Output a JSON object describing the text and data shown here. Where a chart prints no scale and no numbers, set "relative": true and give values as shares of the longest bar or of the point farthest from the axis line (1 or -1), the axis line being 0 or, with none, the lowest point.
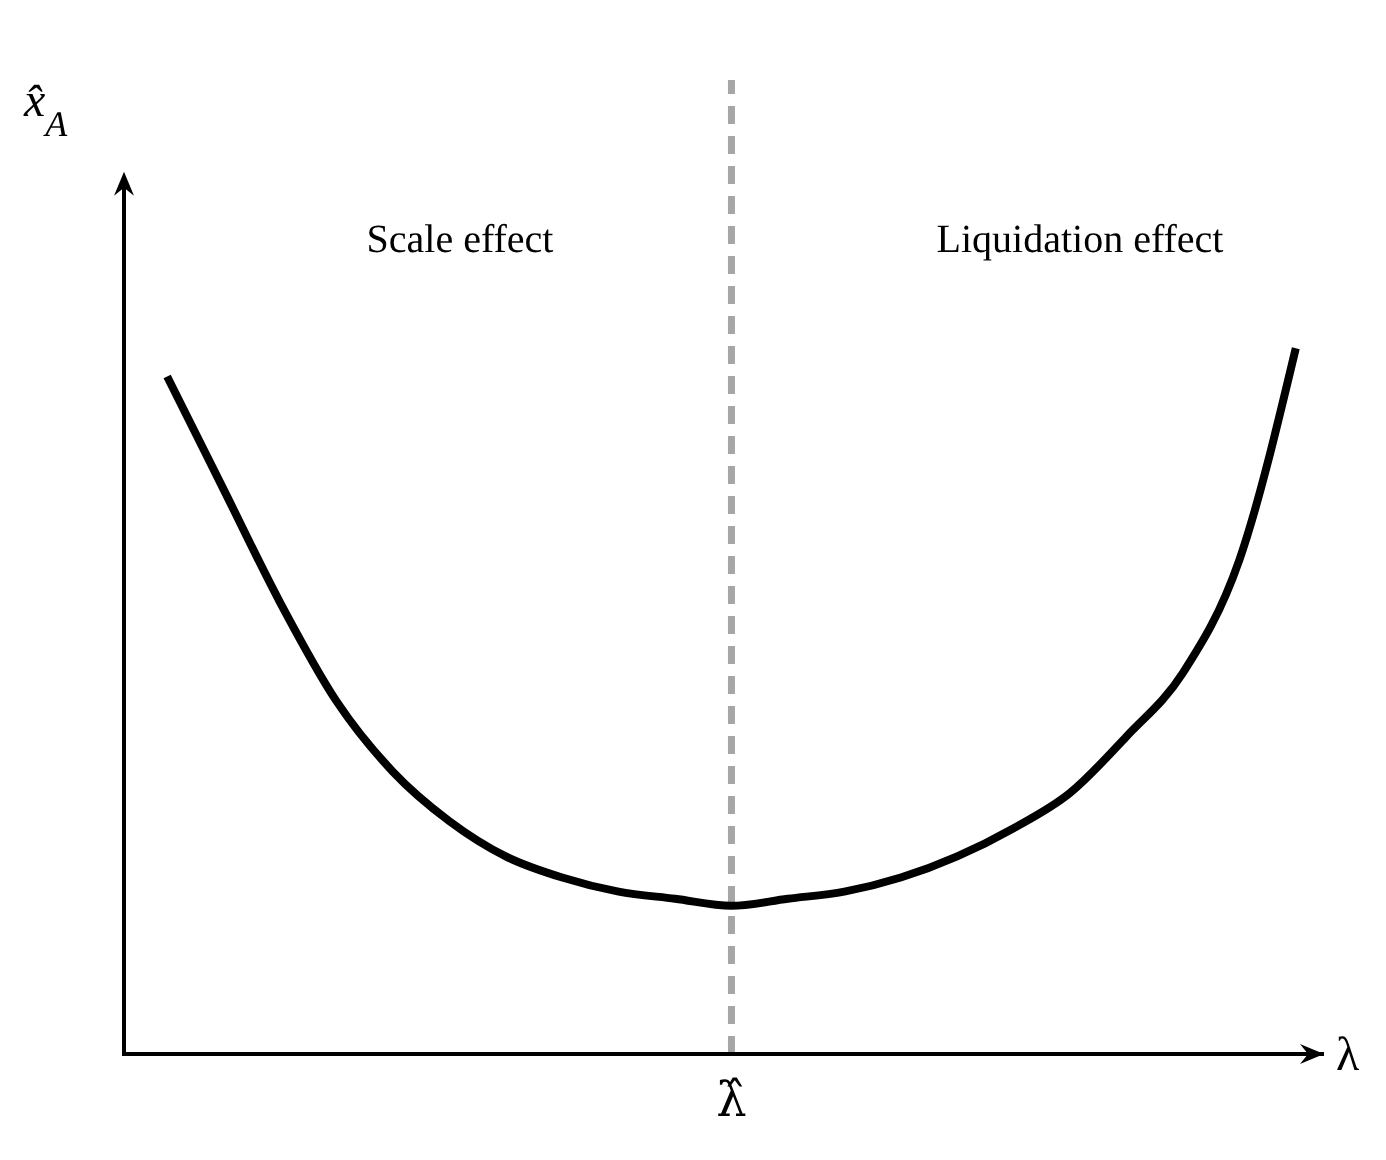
{
  "chart_data": {
    "type": "line",
    "relative": true,
    "xlabel": "λ",
    "ylabel": "x̂$_{A}$",
    "categories": [
      null,
      null,
      null,
      null,
      null,
      null,
      null,
      null,
      null,
      null,
      null,
      null,
      null,
      null,
      null,
      null,
      null,
      null,
      null,
      null,
      null
    ],
    "series": [
      {
        "color": "#000000",
        "values": [
          0.96,
          0.8,
          0.64,
          0.5,
          0.4,
          0.33,
          0.28,
          0.25,
          0.23,
          0.22,
          0.21,
          0.22,
          0.23,
          0.25,
          0.28,
          0.32,
          0.37,
          0.45,
          0.54,
          0.7,
          1
        ]
      }
    ],
    "annotations": [
      "Scale effect",
      "Liquidation effect",
      "λ̂"
    ],
    "marker": "none",
    "line_style": "solid",
    "grid": false
  }
}
